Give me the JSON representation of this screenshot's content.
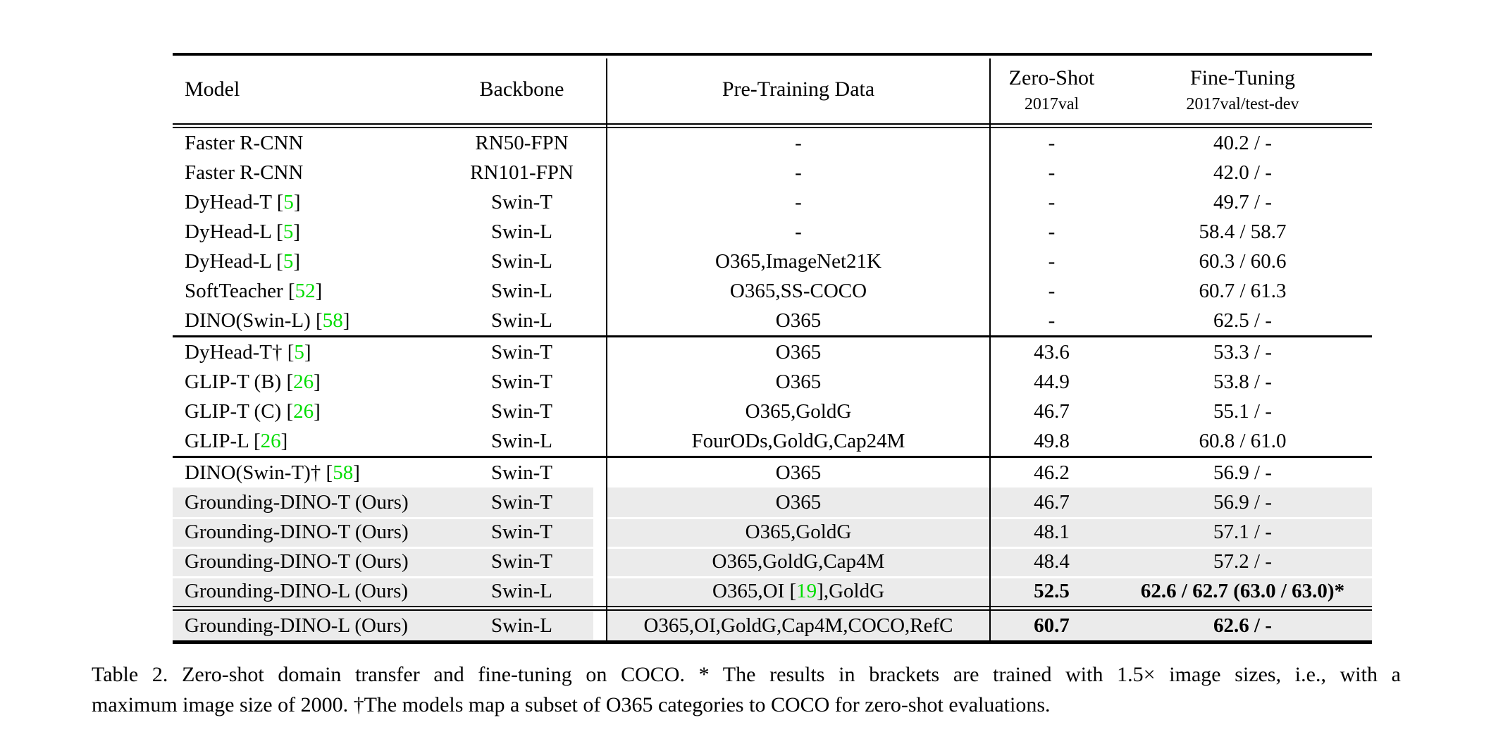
{
  "colors": {
    "citation_green": "#00dd00",
    "row_highlight": "#ebebeb",
    "rule_black": "#000000"
  },
  "header": {
    "columns": [
      {
        "label": "Model"
      },
      {
        "label": "Backbone"
      },
      {
        "label": "Pre-Training Data"
      },
      {
        "label": "Zero-Shot",
        "sublabel": "2017val"
      },
      {
        "label": "Fine-Tuning",
        "sublabel": "2017val/test-dev"
      }
    ]
  },
  "groups": [
    {
      "name": "closed-set-detectors",
      "rows": [
        {
          "model": [
            [
              "Faster R-CNN",
              0
            ]
          ],
          "backbone": "RN50-FPN",
          "pretrain": [
            [
              "-",
              0
            ]
          ],
          "zeroshot": "-",
          "finetune": "40.2 / -"
        },
        {
          "model": [
            [
              "Faster R-CNN",
              0
            ]
          ],
          "backbone": "RN101-FPN",
          "pretrain": [
            [
              "-",
              0
            ]
          ],
          "zeroshot": "-",
          "finetune": "42.0 / -"
        },
        {
          "model": [
            [
              "DyHead-T [",
              0
            ],
            [
              "5",
              1
            ],
            [
              "]",
              0
            ]
          ],
          "backbone": "Swin-T",
          "pretrain": [
            [
              "-",
              0
            ]
          ],
          "zeroshot": "-",
          "finetune": "49.7 / -"
        },
        {
          "model": [
            [
              "DyHead-L [",
              0
            ],
            [
              "5",
              1
            ],
            [
              "]",
              0
            ]
          ],
          "backbone": "Swin-L",
          "pretrain": [
            [
              "-",
              0
            ]
          ],
          "zeroshot": "-",
          "finetune": "58.4 / 58.7"
        },
        {
          "model": [
            [
              "DyHead-L [",
              0
            ],
            [
              "5",
              1
            ],
            [
              "]",
              0
            ]
          ],
          "backbone": "Swin-L",
          "pretrain": [
            [
              "O365,ImageNet21K",
              0
            ]
          ],
          "zeroshot": "-",
          "finetune": "60.3 / 60.6"
        },
        {
          "model": [
            [
              "SoftTeacher [",
              0
            ],
            [
              "52",
              1
            ],
            [
              "]",
              0
            ]
          ],
          "backbone": "Swin-L",
          "pretrain": [
            [
              "O365,SS-COCO",
              0
            ]
          ],
          "zeroshot": "-",
          "finetune": "60.7 / 61.3"
        },
        {
          "model": [
            [
              "DINO(Swin-L) [",
              0
            ],
            [
              "58",
              1
            ],
            [
              "]",
              0
            ]
          ],
          "backbone": "Swin-L",
          "pretrain": [
            [
              "O365",
              0
            ]
          ],
          "zeroshot": "-",
          "finetune": "62.5 / -"
        }
      ]
    },
    {
      "name": "zero-shot-transfer-baselines",
      "rows": [
        {
          "model": [
            [
              "DyHead-T† [",
              0
            ],
            [
              "5",
              1
            ],
            [
              "]",
              0
            ]
          ],
          "backbone": "Swin-T",
          "pretrain": [
            [
              "O365",
              0
            ]
          ],
          "zeroshot": "43.6",
          "finetune": "53.3 / -"
        },
        {
          "model": [
            [
              "GLIP-T (B) [",
              0
            ],
            [
              "26",
              1
            ],
            [
              "]",
              0
            ]
          ],
          "backbone": "Swin-T",
          "pretrain": [
            [
              "O365",
              0
            ]
          ],
          "zeroshot": "44.9",
          "finetune": "53.8 / -"
        },
        {
          "model": [
            [
              "GLIP-T (C) [",
              0
            ],
            [
              "26",
              1
            ],
            [
              "]",
              0
            ]
          ],
          "backbone": "Swin-T",
          "pretrain": [
            [
              "O365,GoldG",
              0
            ]
          ],
          "zeroshot": "46.7",
          "finetune": "55.1 / -"
        },
        {
          "model": [
            [
              "GLIP-L [",
              0
            ],
            [
              "26",
              1
            ],
            [
              "]",
              0
            ]
          ],
          "backbone": "Swin-L",
          "pretrain": [
            [
              "FourODs,GoldG,Cap24M",
              0
            ]
          ],
          "zeroshot": "49.8",
          "finetune": "60.8 / 61.0"
        }
      ]
    },
    {
      "name": "grounding-dino-main",
      "rows": [
        {
          "model": [
            [
              "DINO(Swin-T)† [",
              0
            ],
            [
              "58",
              1
            ],
            [
              "]",
              0
            ]
          ],
          "backbone": "Swin-T",
          "pretrain": [
            [
              "O365",
              0
            ]
          ],
          "zeroshot": "46.2",
          "finetune": "56.9 / -"
        },
        {
          "model": [
            [
              "Grounding-DINO-T (Ours)",
              0
            ]
          ],
          "backbone": "Swin-T",
          "pretrain": [
            [
              "O365",
              0
            ]
          ],
          "zeroshot": "46.7",
          "finetune": "56.9 / -",
          "hl": true
        },
        {
          "model": [
            [
              "Grounding-DINO-T (Ours)",
              0
            ]
          ],
          "backbone": "Swin-T",
          "pretrain": [
            [
              "O365,GoldG",
              0
            ]
          ],
          "zeroshot": "48.1",
          "finetune": "57.1 / -",
          "hl": true
        },
        {
          "model": [
            [
              "Grounding-DINO-T (Ours)",
              0
            ]
          ],
          "backbone": "Swin-T",
          "pretrain": [
            [
              "O365,GoldG,Cap4M",
              0
            ]
          ],
          "zeroshot": "48.4",
          "finetune": "57.2 / -",
          "hl": true
        },
        {
          "model": [
            [
              "Grounding-DINO-L (Ours)",
              0
            ]
          ],
          "backbone": "Swin-L",
          "pretrain": [
            [
              "O365,OI [",
              0
            ],
            [
              "19",
              1
            ],
            [
              "],GoldG",
              0
            ]
          ],
          "zeroshot": "52.5",
          "finetune": "62.6 / 62.7 (63.0 / 63.0)*",
          "hl": true,
          "bold": true
        }
      ]
    },
    {
      "name": "grounding-dino-large-extra",
      "rows": [
        {
          "model": [
            [
              "Grounding-DINO-L (Ours)",
              0
            ]
          ],
          "backbone": "Swin-L",
          "pretrain": [
            [
              "O365,OI,GoldG,Cap4M,COCO,RefC",
              0
            ]
          ],
          "zeroshot": "60.7",
          "finetune": "62.6 / -",
          "hl": true,
          "bold": true
        }
      ]
    }
  ],
  "caption": {
    "lines": [
      "Table 2.  Zero-shot domain transfer and fine-tuning on COCO. * The results in brackets are trained with 1.5× image sizes, i.e., with a",
      "maximum image size of 2000. †The models map a subset of O365 categories to COCO for zero-shot evaluations."
    ]
  }
}
